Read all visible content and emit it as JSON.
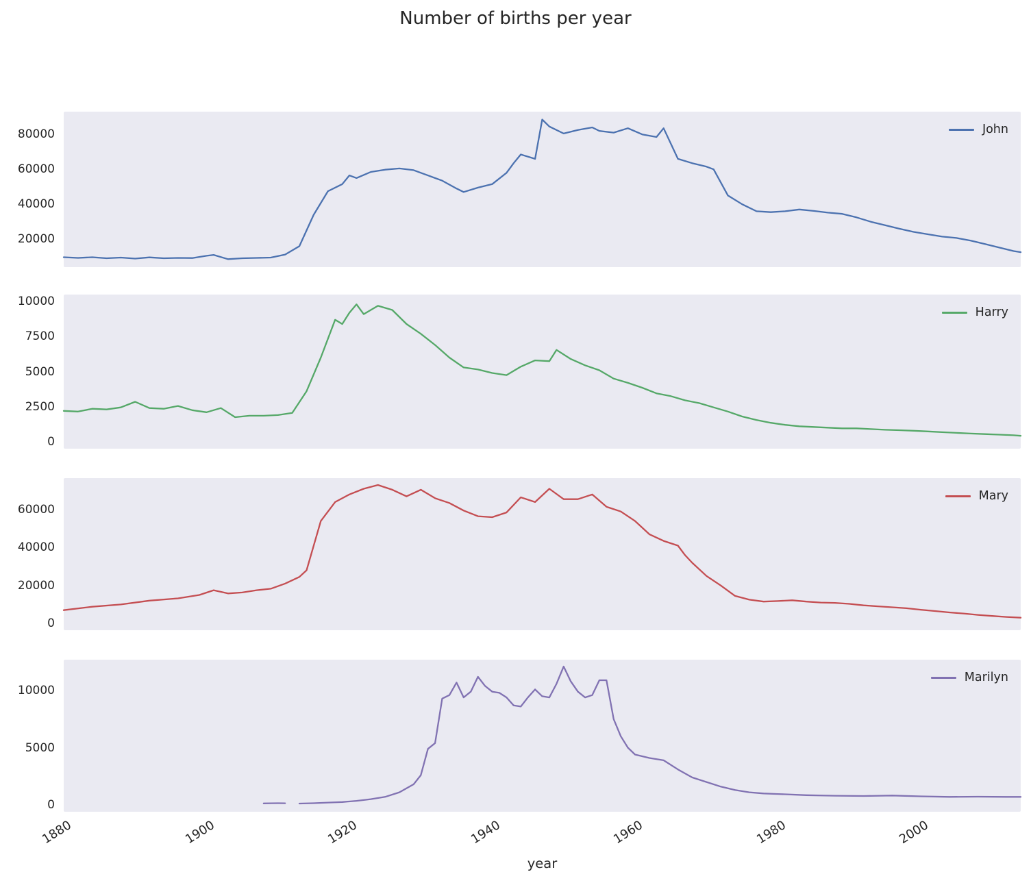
{
  "title": "Number of births per year",
  "x_axis": {
    "label": "year",
    "ticks": [
      1880,
      1900,
      1920,
      1940,
      1960,
      1980,
      2000
    ],
    "lim": [
      1880,
      2014
    ]
  },
  "chart_data": [
    {
      "type": "line",
      "name": "John",
      "color": "#4c72b0",
      "ylim": [
        4000,
        93000
      ],
      "yticks": [
        20000,
        40000,
        60000,
        80000
      ],
      "x": [
        1880,
        1882,
        1884,
        1886,
        1888,
        1890,
        1892,
        1894,
        1896,
        1898,
        1900,
        1901,
        1903,
        1905,
        1907,
        1909,
        1911,
        1913,
        1915,
        1917,
        1919,
        1920,
        1921,
        1923,
        1925,
        1927,
        1929,
        1931,
        1933,
        1935,
        1936,
        1938,
        1940,
        1942,
        1943,
        1944,
        1946,
        1947,
        1948,
        1950,
        1952,
        1954,
        1955,
        1957,
        1959,
        1961,
        1963,
        1964,
        1966,
        1968,
        1970,
        1971,
        1973,
        1975,
        1977,
        1979,
        1981,
        1983,
        1985,
        1987,
        1989,
        1991,
        1993,
        1995,
        1997,
        1999,
        2001,
        2003,
        2005,
        2007,
        2009,
        2011,
        2013,
        2014
      ],
      "values": [
        9700,
        9300,
        9700,
        9100,
        9500,
        8900,
        9600,
        9100,
        9300,
        9200,
        10500,
        11000,
        8600,
        9100,
        9300,
        9500,
        11200,
        16000,
        34000,
        47500,
        51500,
        56500,
        55000,
        58500,
        59800,
        60500,
        59500,
        56500,
        53500,
        49000,
        47000,
        49500,
        51500,
        58000,
        63500,
        68500,
        66000,
        88500,
        84500,
        80500,
        82500,
        84000,
        82000,
        81000,
        83500,
        80000,
        78500,
        83500,
        66000,
        63500,
        61500,
        60000,
        45000,
        40000,
        36000,
        35500,
        36000,
        37000,
        36200,
        35200,
        34500,
        32500,
        30000,
        28000,
        26000,
        24200,
        22800,
        21500,
        20700,
        19200,
        17200,
        15200,
        13200,
        12600
      ]
    },
    {
      "type": "line",
      "name": "Harry",
      "color": "#55a868",
      "ylim": [
        -500,
        10500
      ],
      "yticks": [
        0,
        2500,
        5000,
        7500,
        10000
      ],
      "x": [
        1880,
        1882,
        1884,
        1886,
        1888,
        1890,
        1892,
        1894,
        1896,
        1898,
        1900,
        1902,
        1904,
        1906,
        1908,
        1910,
        1912,
        1914,
        1916,
        1918,
        1919,
        1920,
        1921,
        1922,
        1924,
        1926,
        1928,
        1930,
        1932,
        1934,
        1936,
        1938,
        1940,
        1942,
        1944,
        1946,
        1948,
        1949,
        1951,
        1953,
        1955,
        1957,
        1959,
        1961,
        1963,
        1965,
        1967,
        1969,
        1971,
        1973,
        1975,
        1977,
        1979,
        1981,
        1983,
        1985,
        1987,
        1989,
        1991,
        1993,
        1995,
        1997,
        1999,
        2001,
        2003,
        2005,
        2007,
        2009,
        2011,
        2013,
        2014
      ],
      "values": [
        2200,
        2150,
        2350,
        2300,
        2450,
        2850,
        2400,
        2350,
        2550,
        2250,
        2100,
        2400,
        1750,
        1850,
        1850,
        1900,
        2050,
        3600,
        6000,
        8700,
        8400,
        9200,
        9800,
        9100,
        9700,
        9400,
        8400,
        7700,
        6900,
        6000,
        5300,
        5150,
        4900,
        4750,
        5350,
        5800,
        5750,
        6550,
        5900,
        5450,
        5100,
        4500,
        4200,
        3850,
        3450,
        3250,
        2950,
        2750,
        2450,
        2150,
        1800,
        1550,
        1350,
        1200,
        1100,
        1050,
        1000,
        950,
        950,
        900,
        850,
        820,
        780,
        730,
        680,
        630,
        580,
        540,
        500,
        460,
        420
      ]
    },
    {
      "type": "line",
      "name": "Mary",
      "color": "#c44e52",
      "ylim": [
        -3600,
        76600
      ],
      "yticks": [
        0,
        20000,
        40000,
        60000
      ],
      "x": [
        1880,
        1884,
        1888,
        1892,
        1896,
        1899,
        1901,
        1903,
        1905,
        1907,
        1909,
        1911,
        1913,
        1914,
        1916,
        1918,
        1920,
        1922,
        1924,
        1926,
        1928,
        1930,
        1932,
        1934,
        1936,
        1938,
        1940,
        1942,
        1944,
        1946,
        1948,
        1950,
        1952,
        1954,
        1956,
        1958,
        1960,
        1962,
        1964,
        1966,
        1967,
        1968,
        1970,
        1972,
        1974,
        1976,
        1978,
        1980,
        1982,
        1984,
        1986,
        1988,
        1990,
        1992,
        1994,
        1996,
        1998,
        2000,
        2002,
        2004,
        2006,
        2008,
        2010,
        2012,
        2014
      ],
      "values": [
        7000,
        8800,
        10000,
        12000,
        13200,
        15000,
        17500,
        15800,
        16300,
        17500,
        18300,
        21000,
        24500,
        28000,
        54000,
        64000,
        68000,
        71000,
        73000,
        70500,
        67000,
        70500,
        66000,
        63500,
        59500,
        56500,
        56000,
        58500,
        66500,
        64000,
        71000,
        65500,
        65500,
        68000,
        61500,
        59000,
        54000,
        47000,
        43500,
        41000,
        36000,
        32000,
        25000,
        20000,
        14500,
        12500,
        11500,
        11800,
        12200,
        11500,
        11000,
        10800,
        10300,
        9500,
        9000,
        8500,
        8000,
        7200,
        6500,
        5800,
        5200,
        4500,
        3900,
        3400,
        3000
      ]
    },
    {
      "type": "line",
      "name": "Marilyn",
      "color": "#8172b2",
      "ylim": [
        -600,
        12700
      ],
      "yticks": [
        0,
        5000,
        10000
      ],
      "x": [
        1908,
        1909,
        1910,
        1911,
        1912,
        1913,
        1915,
        1917,
        1919,
        1921,
        1923,
        1925,
        1927,
        1929,
        1930,
        1931,
        1932,
        1933,
        1934,
        1935,
        1936,
        1937,
        1938,
        1939,
        1940,
        1941,
        1942,
        1943,
        1944,
        1945,
        1946,
        1947,
        1948,
        1949,
        1950,
        1951,
        1952,
        1953,
        1954,
        1955,
        1956,
        1957,
        1958,
        1959,
        1960,
        1962,
        1964,
        1966,
        1968,
        1970,
        1972,
        1974,
        1976,
        1978,
        1980,
        1984,
        1988,
        1992,
        1996,
        2000,
        2004,
        2008,
        2012,
        2014
      ],
      "values": [
        130,
        140,
        150,
        140,
        null,
        120,
        150,
        200,
        250,
        350,
        500,
        700,
        1100,
        1800,
        2600,
        4900,
        5400,
        9300,
        9600,
        10700,
        9400,
        9900,
        11200,
        10400,
        9900,
        9800,
        9400,
        8700,
        8600,
        9400,
        10100,
        9500,
        9400,
        10600,
        12100,
        10800,
        9900,
        9400,
        9600,
        10900,
        10900,
        7500,
        6000,
        5000,
        4400,
        4100,
        3900,
        3100,
        2400,
        2000,
        1600,
        1300,
        1100,
        1000,
        950,
        850,
        800,
        780,
        820,
        750,
        700,
        720,
        700,
        700
      ]
    }
  ]
}
